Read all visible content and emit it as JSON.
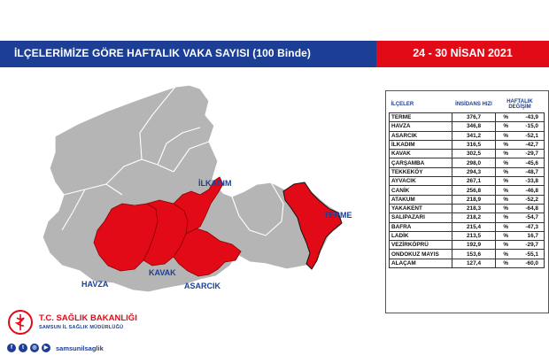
{
  "header": {
    "title": "İLÇELERİMİZE GÖRE HAFTALIK VAKA SAYISI (100 Binde)",
    "date": "24 - 30 NİSAN 2021",
    "colors": {
      "blue": "#1c3f95",
      "red": "#e30a17"
    }
  },
  "map": {
    "labels": {
      "ilkadim": "İLKADIM",
      "terme": "TERME",
      "havza": "HAVZA",
      "kavak": "KAVAK",
      "asarcik": "ASARCIK"
    },
    "colors": {
      "highlight": "#e30a17",
      "base": "#b3b3b3"
    }
  },
  "table": {
    "headers": {
      "district": "İLÇELER",
      "incidence": "İNSİDANS HIZI",
      "change": "HAFTALIK DEĞİŞİM"
    },
    "rows": [
      {
        "name": "TERME",
        "value": "376,7",
        "pct": "%",
        "change": "-43,9"
      },
      {
        "name": "HAVZA",
        "value": "346,8",
        "pct": "%",
        "change": "-15,0"
      },
      {
        "name": "ASARCIK",
        "value": "341,2",
        "pct": "%",
        "change": "-52,1"
      },
      {
        "name": "İLKADIM",
        "value": "316,5",
        "pct": "%",
        "change": "-42,7"
      },
      {
        "name": "KAVAK",
        "value": "302,5",
        "pct": "%",
        "change": "-29,7"
      },
      {
        "name": "ÇARŞAMBA",
        "value": "298,0",
        "pct": "%",
        "change": "-45,6"
      },
      {
        "name": "TEKKEKÖY",
        "value": "294,3",
        "pct": "%",
        "change": "-48,7"
      },
      {
        "name": "AYVACIK",
        "value": "267,1",
        "pct": "%",
        "change": "-33,8"
      },
      {
        "name": "CANİK",
        "value": "256,8",
        "pct": "%",
        "change": "-46,8"
      },
      {
        "name": "ATAKUM",
        "value": "218,9",
        "pct": "%",
        "change": "-52,2"
      },
      {
        "name": "YAKAKENT",
        "value": "218,3",
        "pct": "%",
        "change": "-64,8"
      },
      {
        "name": "SALIPAZARI",
        "value": "218,2",
        "pct": "%",
        "change": "-54,7"
      },
      {
        "name": "BAFRA",
        "value": "215,4",
        "pct": "%",
        "change": "-47,3"
      },
      {
        "name": "LADİK",
        "value": "213,5",
        "pct": "%",
        "change": "16,7"
      },
      {
        "name": "VEZİRKÖPRÜ",
        "value": "192,9",
        "pct": "%",
        "change": "-29,7"
      },
      {
        "name": "ONDOKUZ MAYIS",
        "value": "153,6",
        "pct": "%",
        "change": "-55,1"
      },
      {
        "name": "ALAÇAM",
        "value": "127,4",
        "pct": "%",
        "change": "-60,0"
      }
    ]
  },
  "footer": {
    "org_title": "T.C. SAĞLIK BAKANLIĞI",
    "org_subtitle": "SAMSUN İL SAĞLIK MÜDÜRLÜĞÜ",
    "social_handle": "samsunilsaglik",
    "social_icons": [
      "facebook-icon",
      "twitter-icon",
      "instagram-icon",
      "youtube-icon"
    ]
  }
}
